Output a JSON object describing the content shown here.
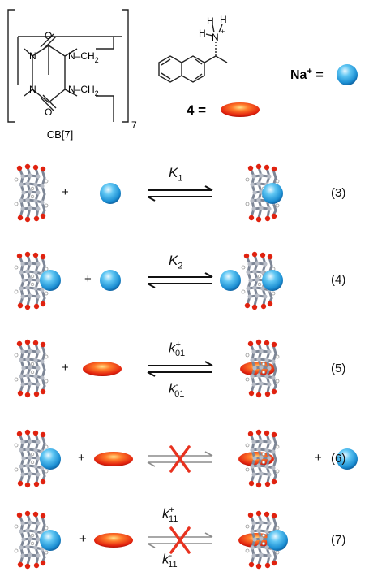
{
  "header": {
    "cb_label": "CB[7]",
    "repeat_subscript": "7",
    "ch2_top": "N–CH",
    "ch2_bottom": "N–CH",
    "ch2_sub": "2",
    "oxygen": "O",
    "nitrogen": "N",
    "ammonium_h": "H",
    "ammonium_n": "N",
    "ammonium_plus": "+",
    "guest_label": "4 =",
    "sodium_label": "Na",
    "sodium_plus": "+",
    "sodium_eq": " ="
  },
  "equations": [
    {
      "number": "(3)",
      "k_top": "K",
      "k_top_sub": "1",
      "k_top_sup": "",
      "k_bottom": "",
      "k_bottom_sub": "",
      "k_bottom_sup": "",
      "blocked": false
    },
    {
      "number": "(4)",
      "k_top": "K",
      "k_top_sub": "2",
      "k_top_sup": "",
      "k_bottom": "",
      "k_bottom_sub": "",
      "k_bottom_sup": "",
      "blocked": false
    },
    {
      "number": "(5)",
      "k_top": "k",
      "k_top_sub": "01",
      "k_top_sup": "+",
      "k_bottom": "k",
      "k_bottom_sub": "01",
      "k_bottom_sup": "-",
      "blocked": false
    },
    {
      "number": "(6)",
      "k_top": "",
      "k_top_sub": "",
      "k_top_sup": "",
      "k_bottom": "",
      "k_bottom_sub": "",
      "k_bottom_sup": "",
      "blocked": true
    },
    {
      "number": "(7)",
      "k_top": "k",
      "k_top_sub": "11",
      "k_top_sup": "+",
      "k_bottom": "k",
      "k_bottom_sub": "11",
      "k_bottom_sup": "-",
      "blocked": true
    }
  ],
  "plus_sign": "+",
  "colors": {
    "sodium_sphere": "#2aa7e6",
    "guest_ellipse": "#e8200c",
    "cb_frame": "#8a93a6",
    "blocked_cross": "#e8321f",
    "blocked_arrow": "#8c8c8c"
  }
}
